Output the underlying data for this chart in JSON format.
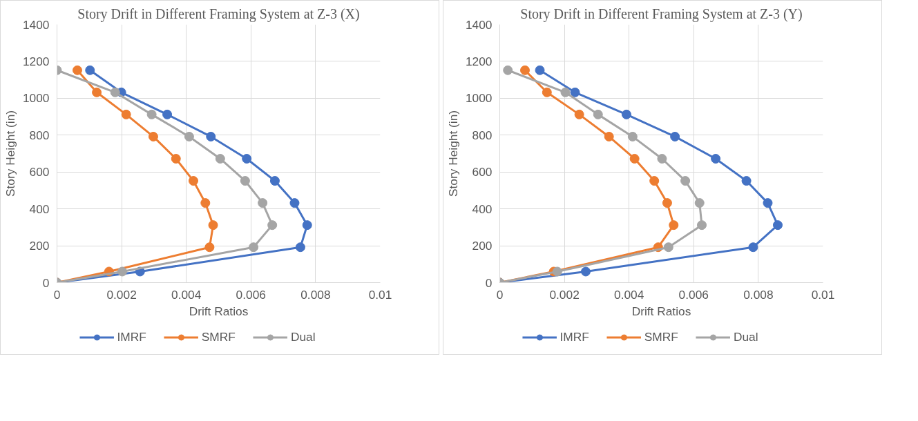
{
  "chart_data": [
    {
      "type": "line",
      "title": "Story Drift in Different Framing System at Z-3 (X)",
      "xlabel": "Drift Ratios",
      "ylabel": "Story Height (in)",
      "xlim": [
        0,
        0.01
      ],
      "ylim": [
        0,
        1400
      ],
      "xticks": [
        0,
        0.002,
        0.004,
        0.006,
        0.008,
        0.01
      ],
      "yticks": [
        0,
        200,
        400,
        600,
        800,
        1000,
        1200,
        1400
      ],
      "grid": true,
      "legend": "bottom",
      "marker": "circle",
      "line_style": "solid",
      "series": [
        {
          "name": "IMRF",
          "color": "#4472c4",
          "x": [
            0,
            0.00257,
            0.00753,
            0.00774,
            0.00735,
            0.00674,
            0.00587,
            0.00476,
            0.00341,
            0.00199,
            0.00102
          ],
          "values": [
            0,
            60,
            192,
            312,
            432,
            552,
            672,
            792,
            912,
            1032,
            1152
          ]
        },
        {
          "name": "SMRF",
          "color": "#ed7d31",
          "x": [
            0,
            0.00161,
            0.00472,
            0.00483,
            0.00459,
            0.00422,
            0.00368,
            0.00298,
            0.00214,
            0.00123,
            0.00063
          ],
          "values": [
            0,
            60,
            192,
            312,
            432,
            552,
            672,
            792,
            912,
            1032,
            1152
          ]
        },
        {
          "name": "Dual",
          "color": "#a5a5a5",
          "x": [
            0,
            0.00202,
            0.00608,
            0.00666,
            0.00636,
            0.00582,
            0.00505,
            0.00409,
            0.00293,
            0.0018,
            0
          ],
          "values": [
            0,
            60,
            192,
            312,
            432,
            552,
            672,
            792,
            912,
            1032,
            1152
          ]
        }
      ]
    },
    {
      "type": "line",
      "title": "Story Drift in Different Framing System at Z-3 (Y)",
      "xlabel": "Drift Ratios",
      "ylabel": "Story Height (in)",
      "xlim": [
        0,
        0.01
      ],
      "ylim": [
        0,
        1400
      ],
      "xticks": [
        0,
        0.002,
        0.004,
        0.006,
        0.008,
        0.01
      ],
      "yticks": [
        0,
        200,
        400,
        600,
        800,
        1000,
        1200,
        1400
      ],
      "grid": true,
      "legend": "bottom",
      "marker": "circle",
      "line_style": "solid",
      "series": [
        {
          "name": "IMRF",
          "color": "#4472c4",
          "x": [
            0,
            0.00266,
            0.00784,
            0.0086,
            0.00829,
            0.00763,
            0.00668,
            0.00542,
            0.00392,
            0.00233,
            0.00124
          ],
          "values": [
            0,
            60,
            192,
            312,
            432,
            552,
            672,
            792,
            912,
            1032,
            1152
          ]
        },
        {
          "name": "SMRF",
          "color": "#ed7d31",
          "x": [
            0,
            0.00167,
            0.0049,
            0.00538,
            0.00518,
            0.00478,
            0.00417,
            0.00338,
            0.00246,
            0.00146,
            0.00078
          ],
          "values": [
            0,
            60,
            192,
            312,
            432,
            552,
            672,
            792,
            912,
            1032,
            1152
          ]
        },
        {
          "name": "Dual",
          "color": "#a5a5a5",
          "x": [
            0,
            0.00178,
            0.00522,
            0.00625,
            0.00618,
            0.00574,
            0.00502,
            0.00411,
            0.00304,
            0.00203,
            0.00025
          ],
          "values": [
            0,
            60,
            192,
            312,
            432,
            552,
            672,
            792,
            912,
            1032,
            1152
          ]
        }
      ]
    }
  ]
}
